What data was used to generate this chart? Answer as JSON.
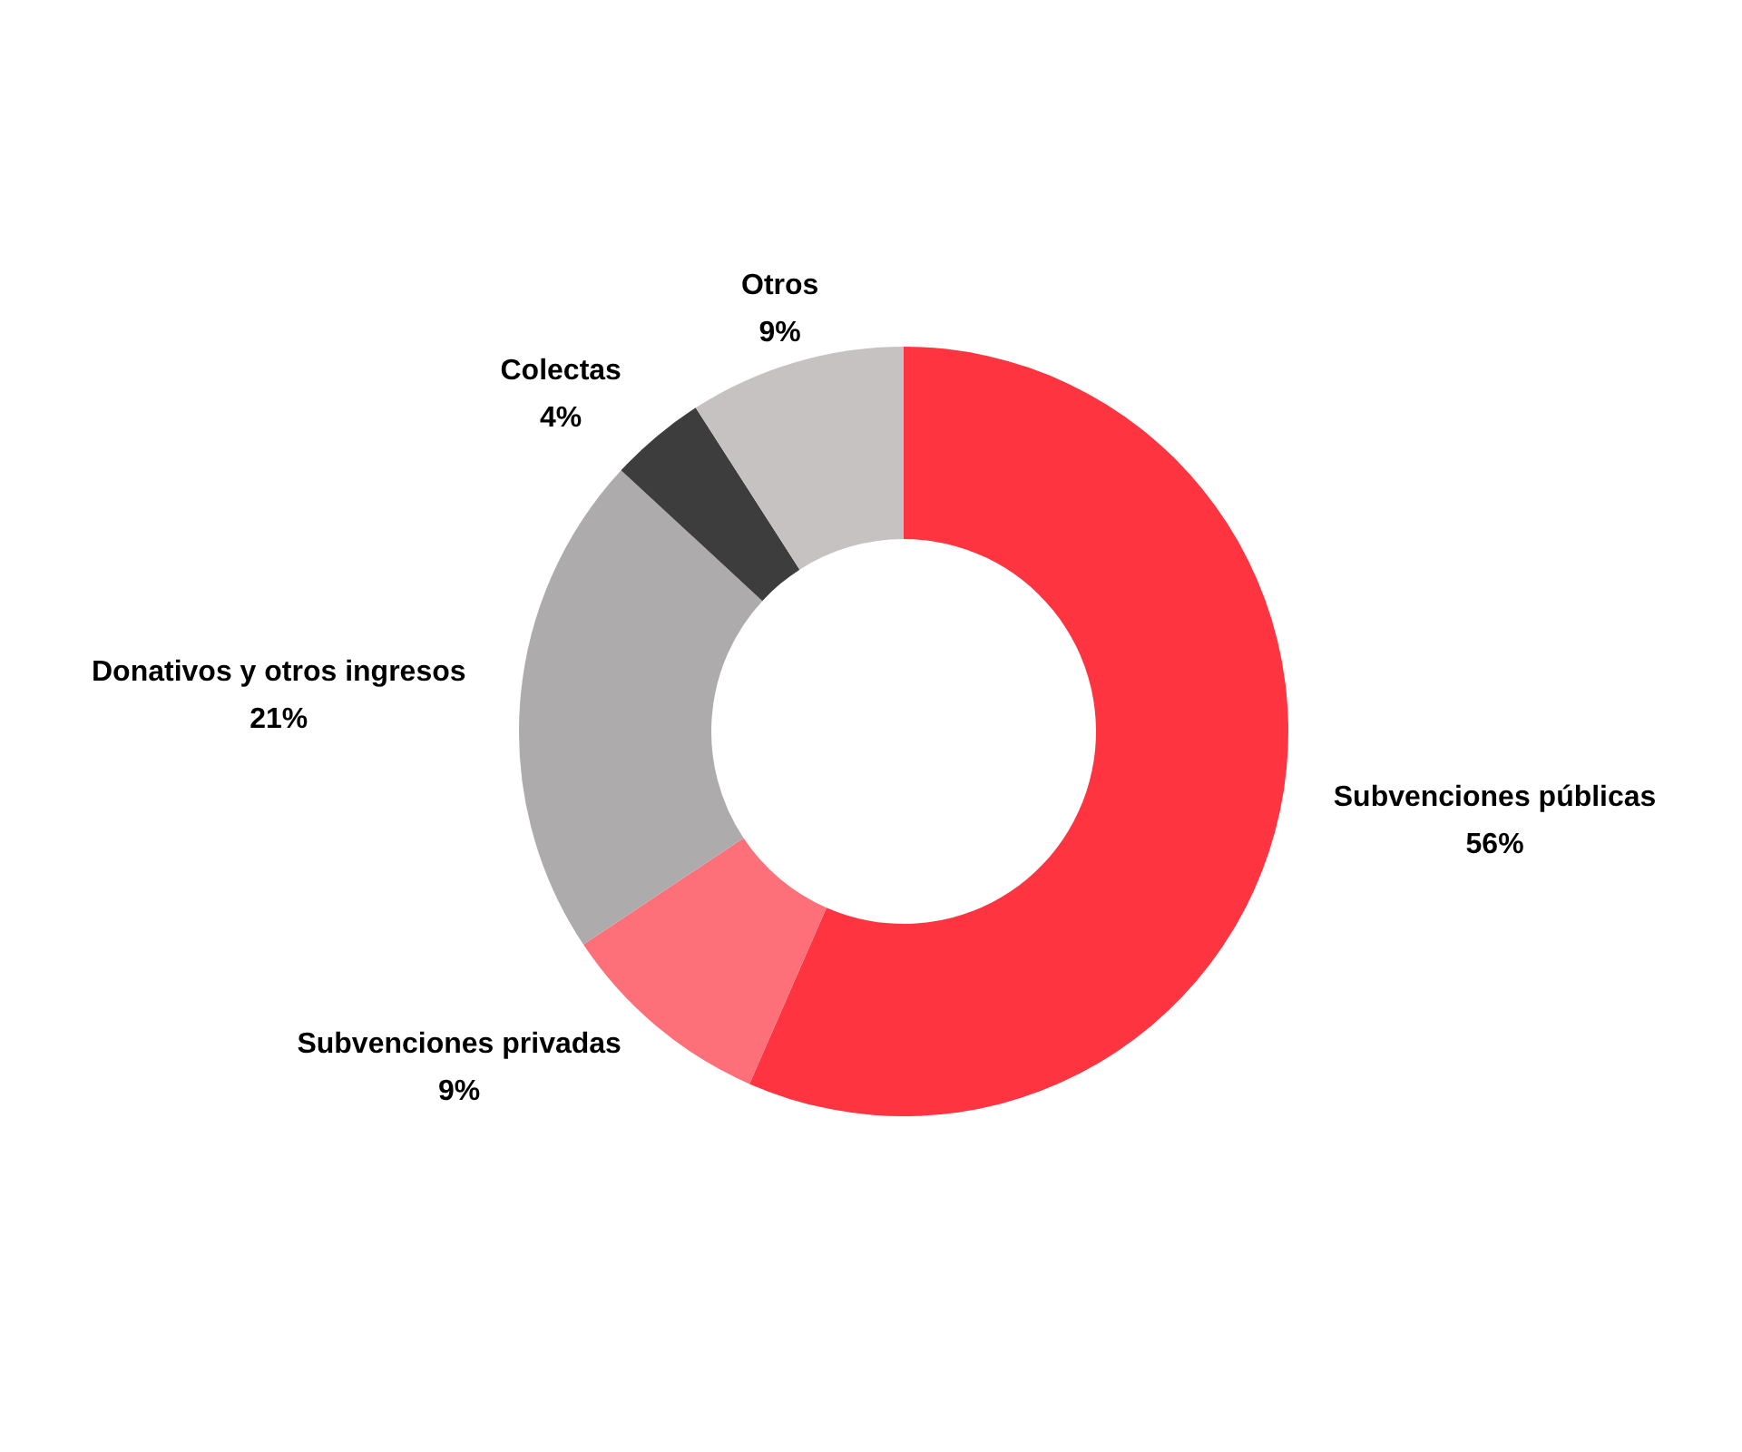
{
  "chart_data": {
    "type": "donut",
    "categories": [
      "Subvenciones públicas",
      "Subvenciones privadas",
      "Donativos y otros ingresos",
      "Colectas",
      "Otros"
    ],
    "values": [
      56,
      9,
      21,
      4,
      9
    ],
    "colors": [
      "#fe3440",
      "#fe7079",
      "#adabac",
      "#3d3d3d",
      "#c6c2c2"
    ],
    "value_labels": [
      "56%",
      "9%",
      "21%",
      "4%",
      "9%"
    ],
    "legend": false
  }
}
